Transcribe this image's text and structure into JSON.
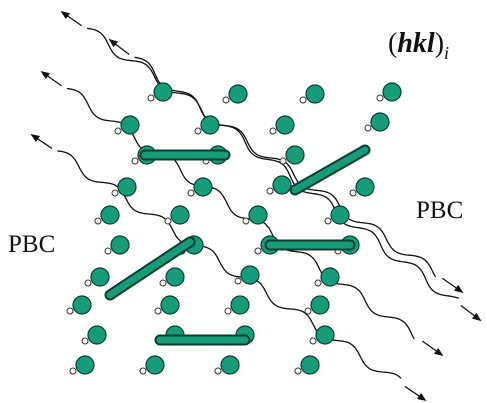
{
  "plane_label": {
    "open": "(",
    "indices": "hkl",
    "close": ")",
    "subscript": "i"
  },
  "pbc_left": "PBC",
  "pbc_right": "PBC"
}
